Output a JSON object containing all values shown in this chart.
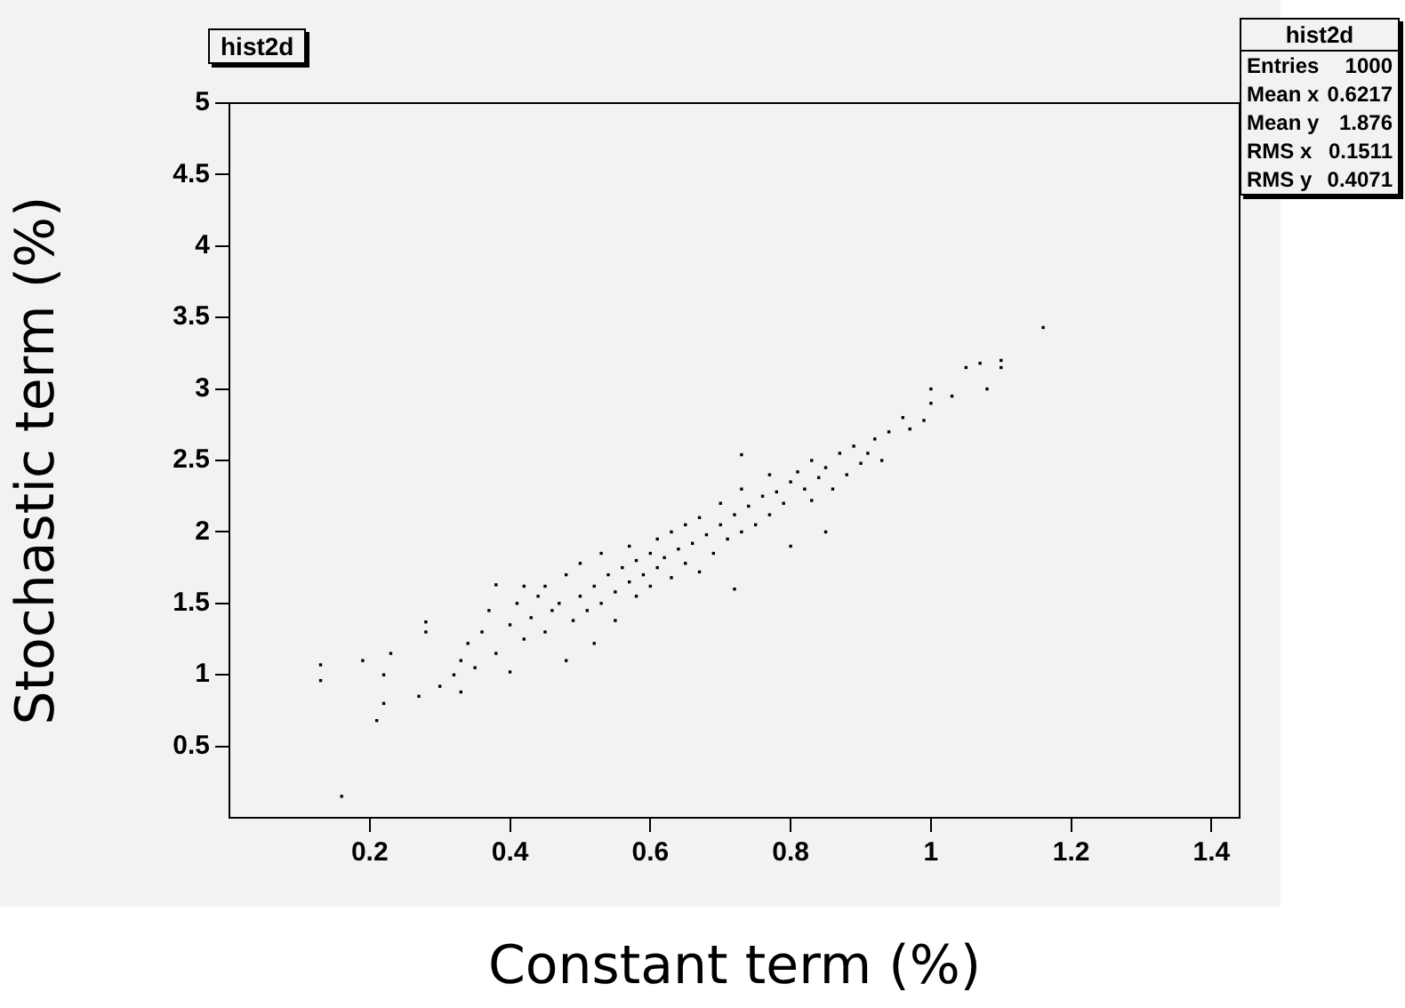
{
  "chart_data": {
    "type": "scatter",
    "title": "hist2d",
    "xlabel": "Constant term (%)",
    "ylabel": "Stochastic term (%)",
    "annotations": [
      "hist2d",
      "Entries",
      "1000",
      "Mean x",
      "0.6217",
      "Mean y",
      "1.876",
      "RMS x",
      "0.1511",
      "RMS y",
      "0.4071"
    ],
    "x": [
      0.13,
      0.13,
      0.16,
      0.19,
      0.21,
      0.22,
      0.22,
      0.23,
      0.27,
      0.28,
      0.28,
      0.3,
      0.32,
      0.33,
      0.33,
      0.34,
      0.35,
      0.36,
      0.37,
      0.38,
      0.38,
      0.4,
      0.4,
      0.41,
      0.42,
      0.43,
      0.44,
      0.45,
      0.45,
      0.46,
      0.47,
      0.48,
      0.48,
      0.49,
      0.5,
      0.5,
      0.51,
      0.52,
      0.53,
      0.53,
      0.54,
      0.55,
      0.55,
      0.56,
      0.57,
      0.57,
      0.58,
      0.58,
      0.59,
      0.6,
      0.6,
      0.61,
      0.61,
      0.62,
      0.63,
      0.63,
      0.64,
      0.65,
      0.65,
      0.66,
      0.67,
      0.67,
      0.68,
      0.69,
      0.7,
      0.7,
      0.71,
      0.72,
      0.73,
      0.73,
      0.74,
      0.75,
      0.76,
      0.77,
      0.77,
      0.78,
      0.79,
      0.8,
      0.8,
      0.81,
      0.82,
      0.83,
      0.83,
      0.84,
      0.85,
      0.86,
      0.87,
      0.88,
      0.89,
      0.9,
      0.91,
      0.92,
      0.93,
      0.94,
      0.96,
      0.97,
      0.99,
      1.0,
      1.0,
      1.03,
      1.05,
      1.07,
      1.08,
      1.1,
      1.1,
      1.16,
      0.72,
      0.85,
      0.52,
      0.42,
      0.73
    ],
    "values": [
      1.07,
      0.96,
      0.15,
      1.1,
      0.68,
      0.8,
      1.0,
      1.15,
      0.85,
      1.3,
      1.37,
      0.92,
      1.0,
      1.1,
      0.88,
      1.22,
      1.05,
      1.3,
      1.45,
      1.63,
      1.15,
      1.02,
      1.35,
      1.5,
      1.25,
      1.4,
      1.55,
      1.3,
      1.62,
      1.45,
      1.5,
      1.7,
      1.1,
      1.38,
      1.55,
      1.78,
      1.45,
      1.62,
      1.85,
      1.5,
      1.7,
      1.58,
      1.38,
      1.75,
      1.65,
      1.9,
      1.55,
      1.8,
      1.7,
      1.85,
      1.62,
      1.95,
      1.75,
      1.82,
      1.68,
      2.0,
      1.88,
      1.78,
      2.05,
      1.92,
      1.72,
      2.1,
      1.98,
      1.85,
      2.05,
      2.2,
      1.95,
      2.12,
      2.0,
      2.3,
      2.18,
      2.05,
      2.25,
      2.4,
      2.12,
      2.28,
      2.2,
      2.35,
      1.9,
      2.42,
      2.3,
      2.5,
      2.22,
      2.38,
      2.45,
      2.3,
      2.55,
      2.4,
      2.6,
      2.48,
      2.55,
      2.65,
      2.5,
      2.7,
      2.8,
      2.72,
      2.78,
      2.9,
      3.0,
      2.95,
      3.15,
      3.18,
      3.0,
      3.2,
      3.15,
      3.43,
      1.6,
      2.0,
      1.22,
      1.62,
      2.54
    ],
    "color": "#000000",
    "marker": "square",
    "xlim": [
      0,
      1.44
    ],
    "ylim": [
      0,
      5
    ],
    "xticks": [
      0.2,
      0.4,
      0.6,
      0.8,
      1,
      1.2,
      1.4
    ],
    "yticks": [
      0.5,
      1,
      1.5,
      2,
      2.5,
      3,
      3.5,
      4,
      4.5,
      5
    ],
    "grid": false,
    "legend": false
  }
}
